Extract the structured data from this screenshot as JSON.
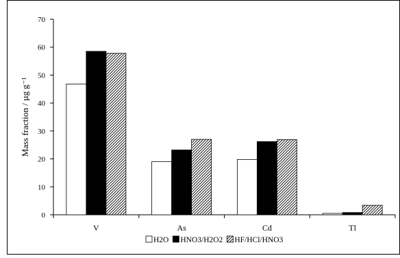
{
  "chart_data": {
    "type": "bar",
    "title": "",
    "xlabel": "",
    "ylabel": "Mass fraction / µg g⁻¹",
    "ylim": [
      0,
      70
    ],
    "yticks": [
      0,
      10,
      20,
      30,
      40,
      50,
      60,
      70
    ],
    "categories": [
      "V",
      "As",
      "Cd",
      "Tl"
    ],
    "series": [
      {
        "name": "H2O",
        "pattern": "white",
        "values": [
          46.8,
          19.0,
          19.8,
          0.5
        ]
      },
      {
        "name": "HNO3/H2O2",
        "pattern": "black",
        "values": [
          58.5,
          23.2,
          26.2,
          0.8
        ]
      },
      {
        "name": "HF/HCl/HNO3",
        "pattern": "hatched",
        "values": [
          57.8,
          27.0,
          26.9,
          3.4
        ]
      }
    ],
    "grid": false,
    "legend_position": "bottom"
  }
}
